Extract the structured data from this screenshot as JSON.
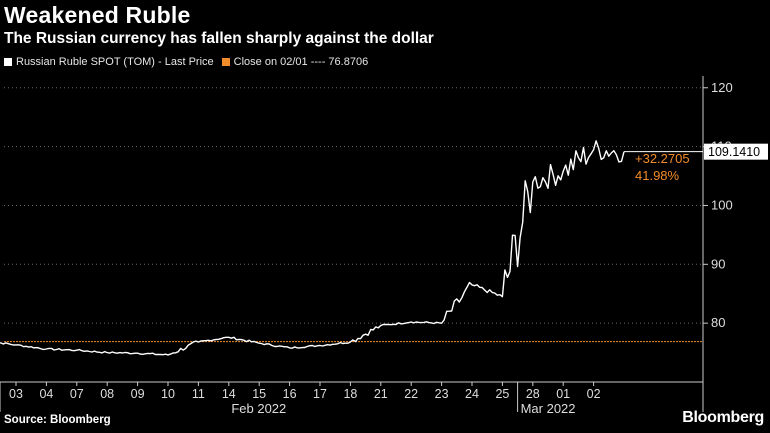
{
  "header": {
    "title": "Weakened Ruble",
    "subtitle": "The Russian currency has fallen sharply against the dollar"
  },
  "legend": {
    "series_label": "Russian Ruble SPOT (TOM) - Last Price",
    "close_label": "Close on 02/01 ---- 76.8706"
  },
  "footer": {
    "source": "Source: Bloomberg",
    "brand": "Bloomberg"
  },
  "colors": {
    "background": "#000000",
    "line": "#ffffff",
    "reference": "#f28c28",
    "grid": "#666666"
  },
  "chart_data": {
    "type": "line",
    "title": "Weakened Ruble",
    "subtitle": "The Russian currency has fallen sharply against the dollar",
    "y_axis_side": "right",
    "ylim": [
      70,
      122
    ],
    "y_ticks": [
      80,
      90,
      100,
      110,
      120
    ],
    "grid": "horizontal dotted",
    "x_tick_labels": [
      "03",
      "04",
      "07",
      "08",
      "09",
      "10",
      "11",
      "14",
      "15",
      "16",
      "17",
      "18",
      "21",
      "22",
      "23",
      "24",
      "25",
      "28",
      "01",
      "02"
    ],
    "month_labels": [
      "Feb 2022",
      "Mar 2022"
    ],
    "series": [
      {
        "name": "Russian Ruble SPOT (TOM) - Last Price",
        "x": [
          "02/02",
          "02/03",
          "02/04",
          "02/07",
          "02/08",
          "02/09",
          "02/10",
          "02/11",
          "02/14",
          "02/15",
          "02/16",
          "02/17",
          "02/18",
          "02/21",
          "02/22",
          "02/23",
          "02/24",
          "02/25",
          "02/28",
          "03/01",
          "03/02",
          "03/03"
        ],
        "values": [
          77.0,
          76.3,
          75.6,
          75.4,
          75.0,
          74.9,
          74.6,
          76.8,
          77.6,
          76.6,
          75.8,
          76.2,
          76.8,
          79.6,
          80.2,
          80.0,
          86.5,
          84.5,
          104.0,
          105.8,
          109.5,
          109.14
        ]
      }
    ],
    "reference_line": {
      "label": "Close on 02/01",
      "value": 76.8706
    },
    "last_value": "109.1410",
    "annotation": {
      "change": "+32.2705",
      "percent": "41.98%"
    }
  }
}
